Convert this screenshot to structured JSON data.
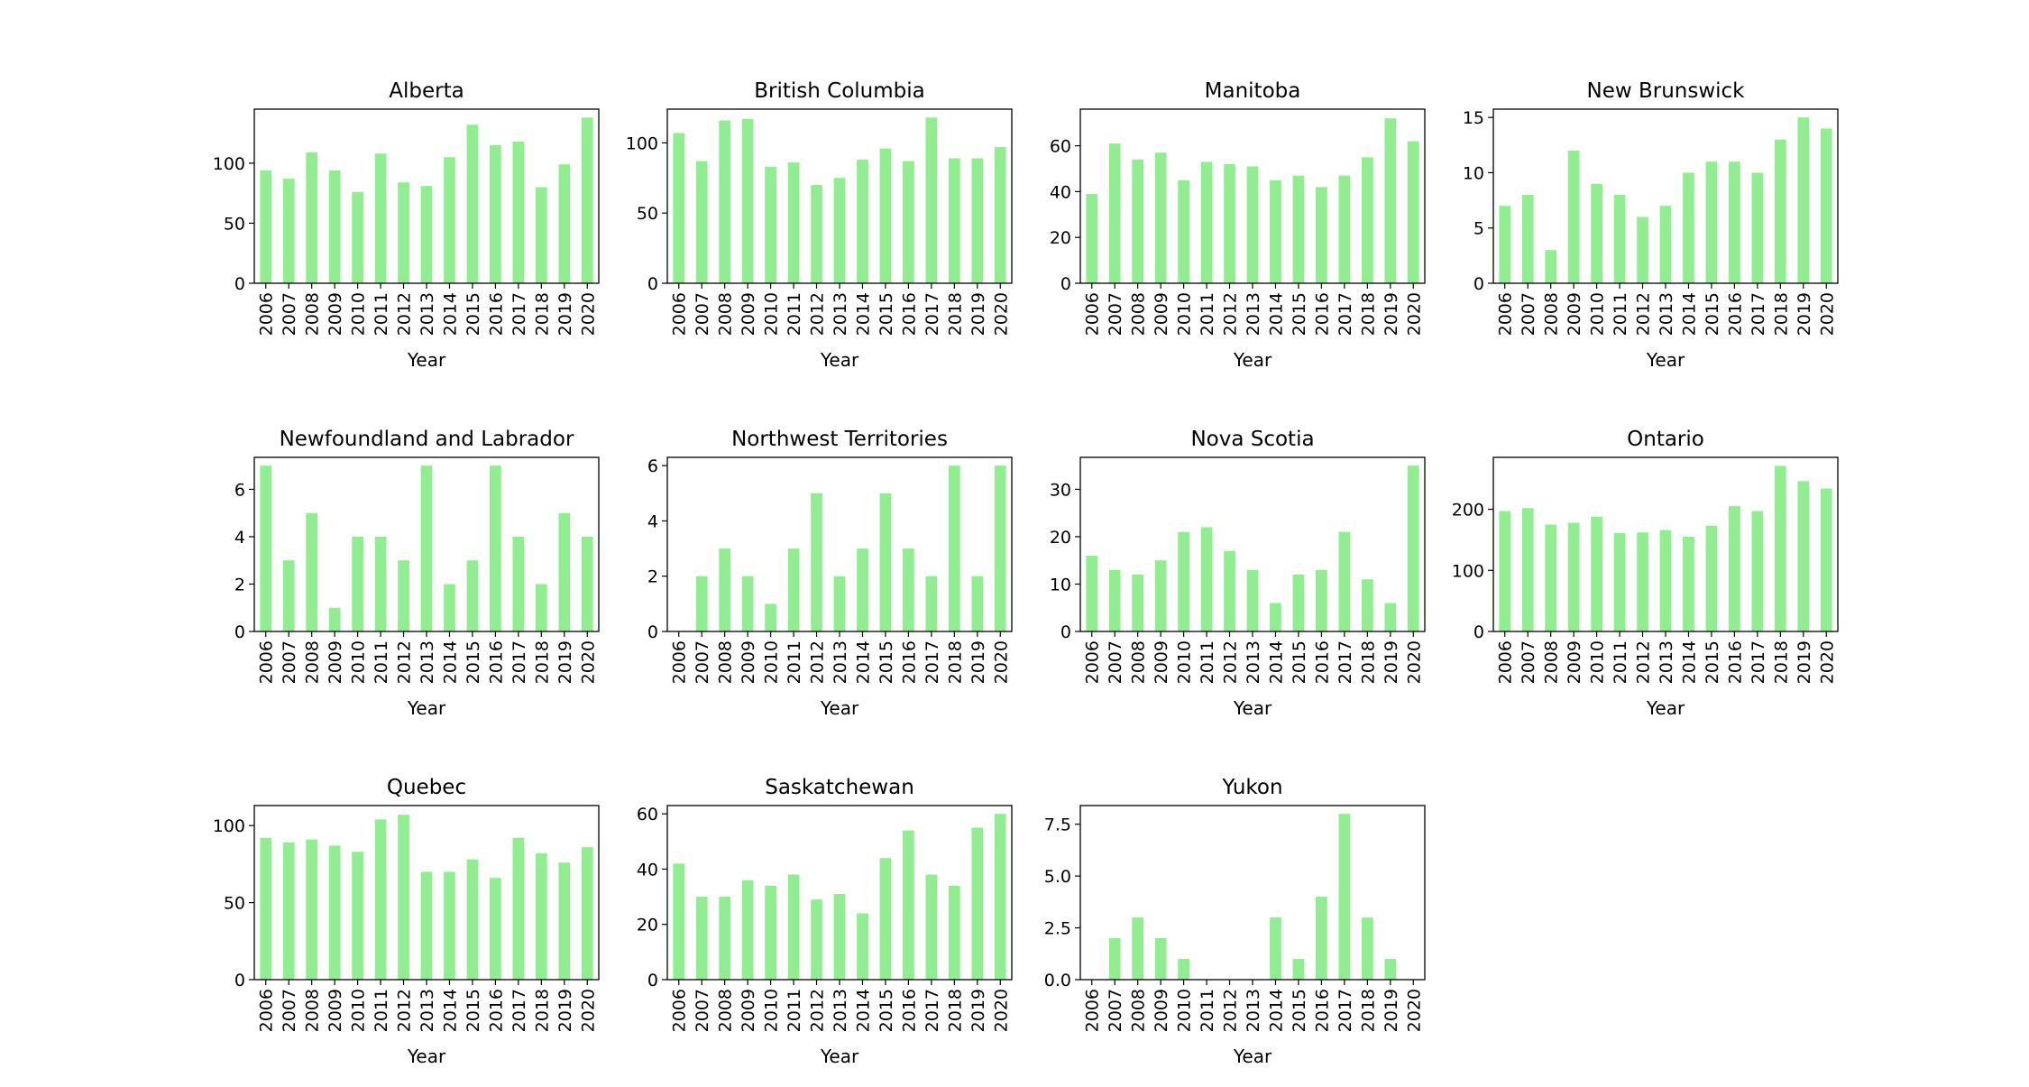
{
  "chart_data": [
    {
      "type": "bar",
      "title": "Alberta",
      "xlabel": "Year",
      "ylabel": "",
      "categories": [
        "2006",
        "2007",
        "2008",
        "2009",
        "2010",
        "2011",
        "2012",
        "2013",
        "2014",
        "2015",
        "2016",
        "2017",
        "2018",
        "2019",
        "2020"
      ],
      "values": [
        94,
        87,
        109,
        94,
        76,
        108,
        84,
        81,
        105,
        132,
        115,
        118,
        80,
        99,
        138
      ],
      "ylim": [
        0,
        145
      ],
      "yticks": [
        0,
        50,
        100
      ],
      "ytick_labels": [
        "0",
        "50",
        "100"
      ],
      "grid": false
    },
    {
      "type": "bar",
      "title": "British Columbia",
      "xlabel": "Year",
      "ylabel": "",
      "categories": [
        "2006",
        "2007",
        "2008",
        "2009",
        "2010",
        "2011",
        "2012",
        "2013",
        "2014",
        "2015",
        "2016",
        "2017",
        "2018",
        "2019",
        "2020"
      ],
      "values": [
        107,
        87,
        116,
        117,
        83,
        86,
        70,
        75,
        88,
        96,
        87,
        118,
        89,
        89,
        97
      ],
      "ylim": [
        0,
        124
      ],
      "yticks": [
        0,
        50,
        100
      ],
      "ytick_labels": [
        "0",
        "50",
        "100"
      ],
      "grid": false
    },
    {
      "type": "bar",
      "title": "Manitoba",
      "xlabel": "Year",
      "ylabel": "",
      "categories": [
        "2006",
        "2007",
        "2008",
        "2009",
        "2010",
        "2011",
        "2012",
        "2013",
        "2014",
        "2015",
        "2016",
        "2017",
        "2018",
        "2019",
        "2020"
      ],
      "values": [
        39,
        61,
        54,
        57,
        45,
        53,
        52,
        51,
        45,
        47,
        42,
        47,
        55,
        72,
        62
      ],
      "ylim": [
        0,
        76
      ],
      "yticks": [
        0,
        20,
        40,
        60
      ],
      "ytick_labels": [
        "0",
        "20",
        "40",
        "60"
      ],
      "grid": false
    },
    {
      "type": "bar",
      "title": "New Brunswick",
      "xlabel": "Year",
      "ylabel": "",
      "categories": [
        "2006",
        "2007",
        "2008",
        "2009",
        "2010",
        "2011",
        "2012",
        "2013",
        "2014",
        "2015",
        "2016",
        "2017",
        "2018",
        "2019",
        "2020"
      ],
      "values": [
        7,
        8,
        3,
        12,
        9,
        8,
        6,
        7,
        10,
        11,
        11,
        10,
        13,
        15,
        14
      ],
      "ylim": [
        0,
        15.75
      ],
      "yticks": [
        0,
        5,
        10,
        15
      ],
      "ytick_labels": [
        "0",
        "5",
        "10",
        "15"
      ],
      "grid": false
    },
    {
      "type": "bar",
      "title": "Newfoundland and Labrador",
      "xlabel": "Year",
      "ylabel": "",
      "categories": [
        "2006",
        "2007",
        "2008",
        "2009",
        "2010",
        "2011",
        "2012",
        "2013",
        "2014",
        "2015",
        "2016",
        "2017",
        "2018",
        "2019",
        "2020"
      ],
      "values": [
        7,
        3,
        5,
        1,
        4,
        4,
        3,
        7,
        2,
        3,
        7,
        4,
        2,
        5,
        4
      ],
      "ylim": [
        0,
        7.35
      ],
      "yticks": [
        0,
        2,
        4,
        6
      ],
      "ytick_labels": [
        "0",
        "2",
        "4",
        "6"
      ],
      "grid": false
    },
    {
      "type": "bar",
      "title": "Northwest Territories",
      "xlabel": "Year",
      "ylabel": "",
      "categories": [
        "2006",
        "2007",
        "2008",
        "2009",
        "2010",
        "2011",
        "2012",
        "2013",
        "2014",
        "2015",
        "2016",
        "2017",
        "2018",
        "2019",
        "2020"
      ],
      "values": [
        0,
        2,
        3,
        2,
        1,
        3,
        5,
        2,
        3,
        5,
        3,
        2,
        6,
        2,
        6
      ],
      "ylim": [
        0,
        6.3
      ],
      "yticks": [
        0,
        2,
        4,
        6
      ],
      "ytick_labels": [
        "0",
        "2",
        "4",
        "6"
      ],
      "grid": false
    },
    {
      "type": "bar",
      "title": "Nova Scotia",
      "xlabel": "Year",
      "ylabel": "",
      "categories": [
        "2006",
        "2007",
        "2008",
        "2009",
        "2010",
        "2011",
        "2012",
        "2013",
        "2014",
        "2015",
        "2016",
        "2017",
        "2018",
        "2019",
        "2020"
      ],
      "values": [
        16,
        13,
        12,
        15,
        21,
        22,
        17,
        13,
        6,
        12,
        13,
        21,
        11,
        6,
        35
      ],
      "ylim": [
        0,
        36.75
      ],
      "yticks": [
        0,
        10,
        20,
        30
      ],
      "ytick_labels": [
        "0",
        "10",
        "20",
        "30"
      ],
      "grid": false
    },
    {
      "type": "bar",
      "title": "Ontario",
      "xlabel": "Year",
      "ylabel": "",
      "categories": [
        "2006",
        "2007",
        "2008",
        "2009",
        "2010",
        "2011",
        "2012",
        "2013",
        "2014",
        "2015",
        "2016",
        "2017",
        "2018",
        "2019",
        "2020"
      ],
      "values": [
        197,
        202,
        175,
        178,
        188,
        161,
        162,
        166,
        155,
        173,
        205,
        197,
        271,
        246,
        234
      ],
      "ylim": [
        0,
        285
      ],
      "yticks": [
        0,
        100,
        200
      ],
      "ytick_labels": [
        "0",
        "100",
        "200"
      ],
      "grid": false
    },
    {
      "type": "bar",
      "title": "Quebec",
      "xlabel": "Year",
      "ylabel": "",
      "categories": [
        "2006",
        "2007",
        "2008",
        "2009",
        "2010",
        "2011",
        "2012",
        "2013",
        "2014",
        "2015",
        "2016",
        "2017",
        "2018",
        "2019",
        "2020"
      ],
      "values": [
        92,
        89,
        91,
        87,
        83,
        104,
        107,
        70,
        70,
        78,
        66,
        92,
        82,
        76,
        86
      ],
      "ylim": [
        0,
        113
      ],
      "yticks": [
        0,
        50,
        100
      ],
      "ytick_labels": [
        "0",
        "50",
        "100"
      ],
      "grid": false
    },
    {
      "type": "bar",
      "title": "Saskatchewan",
      "xlabel": "Year",
      "ylabel": "",
      "categories": [
        "2006",
        "2007",
        "2008",
        "2009",
        "2010",
        "2011",
        "2012",
        "2013",
        "2014",
        "2015",
        "2016",
        "2017",
        "2018",
        "2019",
        "2020"
      ],
      "values": [
        42,
        30,
        30,
        36,
        34,
        38,
        29,
        31,
        24,
        44,
        54,
        38,
        34,
        55,
        60
      ],
      "ylim": [
        0,
        63
      ],
      "yticks": [
        0,
        20,
        40,
        60
      ],
      "ytick_labels": [
        "0",
        "20",
        "40",
        "60"
      ],
      "grid": false
    },
    {
      "type": "bar",
      "title": "Yukon",
      "xlabel": "Year",
      "ylabel": "",
      "categories": [
        "2006",
        "2007",
        "2008",
        "2009",
        "2010",
        "2011",
        "2012",
        "2013",
        "2014",
        "2015",
        "2016",
        "2017",
        "2018",
        "2019",
        "2020"
      ],
      "values": [
        0,
        2,
        3,
        2,
        1,
        0,
        0,
        0,
        3,
        1,
        4,
        8,
        3,
        1,
        0
      ],
      "ylim": [
        0,
        8.4
      ],
      "yticks": [
        0,
        2.5,
        5,
        7.5
      ],
      "ytick_labels": [
        "0.0",
        "2.5",
        "5.0",
        "7.5"
      ],
      "grid": false
    }
  ],
  "bar_color": "#90ee90"
}
